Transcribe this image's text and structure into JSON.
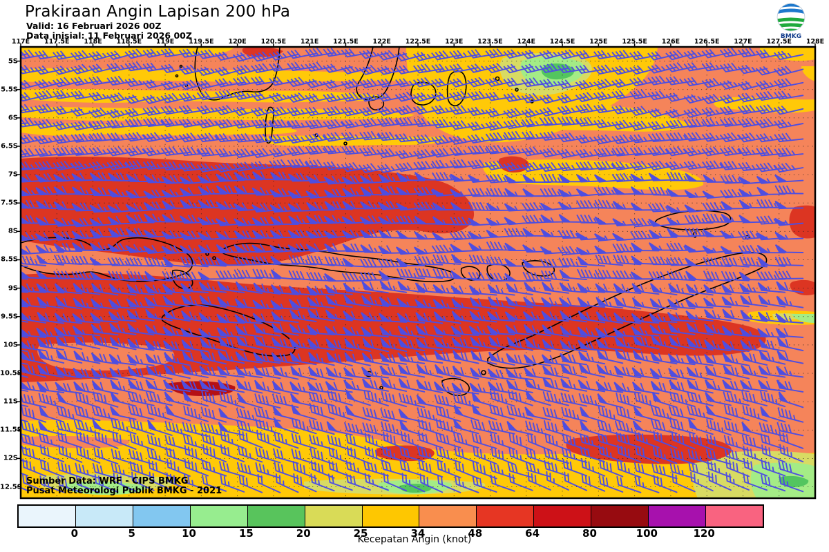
{
  "header": {
    "title": "Prakiraan Angin Lapisan 200 hPa",
    "valid": "Valid: 16 Februari 2026 00Z",
    "init": "Data inisial: 11 Februari 2026 00Z",
    "logo_text": "BMKG"
  },
  "axes": {
    "lon_labels": [
      "117E",
      "117.5E",
      "118E",
      "118.5E",
      "119E",
      "119.5E",
      "120E",
      "120.5E",
      "121E",
      "121.5E",
      "122E",
      "122.5E",
      "123E",
      "123.5E",
      "124E",
      "124.5E",
      "125E",
      "125.5E",
      "126E",
      "126.5E",
      "127E",
      "127.5E",
      "128E"
    ],
    "lat_labels": [
      "5S",
      "5.5S",
      "6S",
      "6.5S",
      "7S",
      "7.5S",
      "8S",
      "8.5S",
      "9S",
      "9.5S",
      "10S",
      "10.5S",
      "11S",
      "11.5S",
      "12S",
      "12.5S"
    ]
  },
  "map_text": {
    "source_line1": "Sumber Data: WRF - CIPS BMKG",
    "source_line2": "Pusat Meteorologi Publik BMKG -  2021"
  },
  "legend": {
    "title": "Kecepatan Angin (knot)",
    "tick_labels": [
      "0",
      "5",
      "10",
      "15",
      "20",
      "25",
      "34",
      "48",
      "64",
      "80",
      "100",
      "120"
    ],
    "colors": [
      "#EAF5FC",
      "#C8E9F8",
      "#82C7F0",
      "#97ED8F",
      "#58C45C",
      "#D9DB57",
      "#FEC701",
      "#F98E4E",
      "#E63623",
      "#CD1117",
      "#970B10",
      "#A711AD",
      "#F96380"
    ]
  },
  "palette": {
    "base": "#F5845A",
    "yellow": "#FFC908",
    "khaki": "#D8DB63",
    "lgreen": "#A4EC86",
    "green": "#53C55F",
    "red": "#DC3522",
    "darkred": "#B51015",
    "barb": "#4E4EE0"
  },
  "wind_field": {
    "units": "knot",
    "barb_color": "#4E4EE0",
    "bands": [
      {
        "lat_to": 6.0,
        "speed_kt": 35,
        "dir_deg": 168
      },
      {
        "lat_to": 7.0,
        "speed_kt": 40,
        "dir_deg": 172
      },
      {
        "lat_to": 8.5,
        "speed_kt": 50,
        "dir_deg": 178,
        "boost": {
          "lon_max": 122.5,
          "add_kt": 15
        }
      },
      {
        "lat_to": 9.0,
        "speed_kt": 45,
        "dir_deg": 182
      },
      {
        "lat_to": 10.0,
        "speed_kt": 60,
        "dir_deg": 186
      },
      {
        "lat_to": 11.0,
        "speed_kt": 65,
        "dir_deg": 190
      },
      {
        "lat_to": 11.8,
        "speed_kt": 45,
        "dir_deg": 195
      },
      {
        "lat_to": 12.4,
        "speed_kt": 35,
        "dir_deg": 199
      },
      {
        "lat_to": 13.0,
        "speed_kt": 25,
        "dir_deg": 202
      }
    ]
  }
}
